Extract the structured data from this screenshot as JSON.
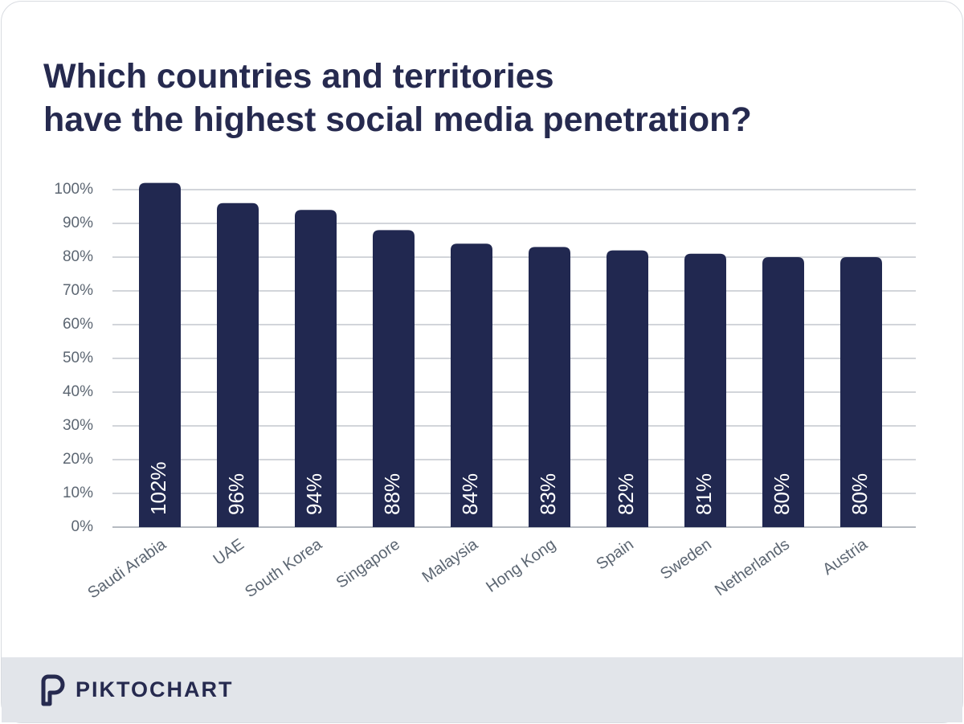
{
  "chart_data": {
    "type": "bar",
    "title": "Which countries and territories\nhave the highest social media penetration?",
    "categories": [
      "Saudi Arabia",
      "UAE",
      "South Korea",
      "Singapore",
      "Malaysia",
      "Hong Kong",
      "Spain",
      "Sweden",
      "Netherlands",
      "Austria"
    ],
    "values": [
      102,
      96,
      94,
      88,
      84,
      83,
      82,
      81,
      80,
      80
    ],
    "value_labels": [
      "102%",
      "96%",
      "94%",
      "88%",
      "84%",
      "83%",
      "82%",
      "81%",
      "80%",
      "80%"
    ],
    "color": "#212850",
    "ylim": [
      0,
      102
    ],
    "yticks": [
      {
        "value": 0,
        "label": "0%"
      },
      {
        "value": 10,
        "label": "10%"
      },
      {
        "value": 20,
        "label": "20%"
      },
      {
        "value": 30,
        "label": "30%"
      },
      {
        "value": 40,
        "label": "40%"
      },
      {
        "value": 50,
        "label": "50%"
      },
      {
        "value": 60,
        "label": "60%"
      },
      {
        "value": 70,
        "label": "70%"
      },
      {
        "value": 80,
        "label": "80%"
      },
      {
        "value": 90,
        "label": "90%"
      },
      {
        "value": 100,
        "label": "100%"
      }
    ],
    "grid": true
  },
  "brand": "PIKTOCHART"
}
